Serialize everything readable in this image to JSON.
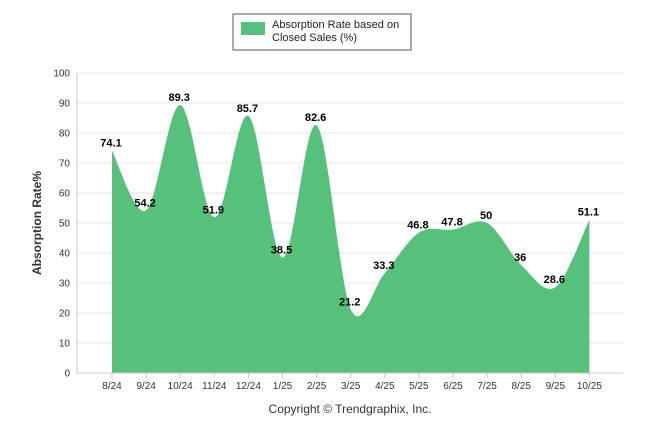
{
  "chart_data": {
    "type": "area",
    "title": "",
    "xlabel": "",
    "ylabel": "Absorption Rate%",
    "ylim": [
      0,
      100
    ],
    "yticks": [
      0,
      10,
      20,
      30,
      40,
      50,
      60,
      70,
      80,
      90,
      100
    ],
    "grid": true,
    "legend_position": "top-center",
    "categories": [
      "8/24",
      "9/24",
      "10/24",
      "11/24",
      "12/24",
      "1/25",
      "2/25",
      "3/25",
      "4/25",
      "5/25",
      "6/25",
      "7/25",
      "8/25",
      "9/25",
      "10/25"
    ],
    "series": [
      {
        "name": "Absorption Rate based on Closed Sales (%)",
        "legend_lines": [
          "Absorption Rate based on",
          "Closed Sales (%)"
        ],
        "values": [
          74.1,
          54.2,
          89.3,
          51.9,
          85.7,
          38.5,
          82.6,
          21.2,
          33.3,
          46.8,
          47.8,
          50,
          36,
          28.6,
          51.1
        ],
        "color": "#55c17a"
      }
    ],
    "footer": "Copyright © Trendgraphix, Inc."
  }
}
